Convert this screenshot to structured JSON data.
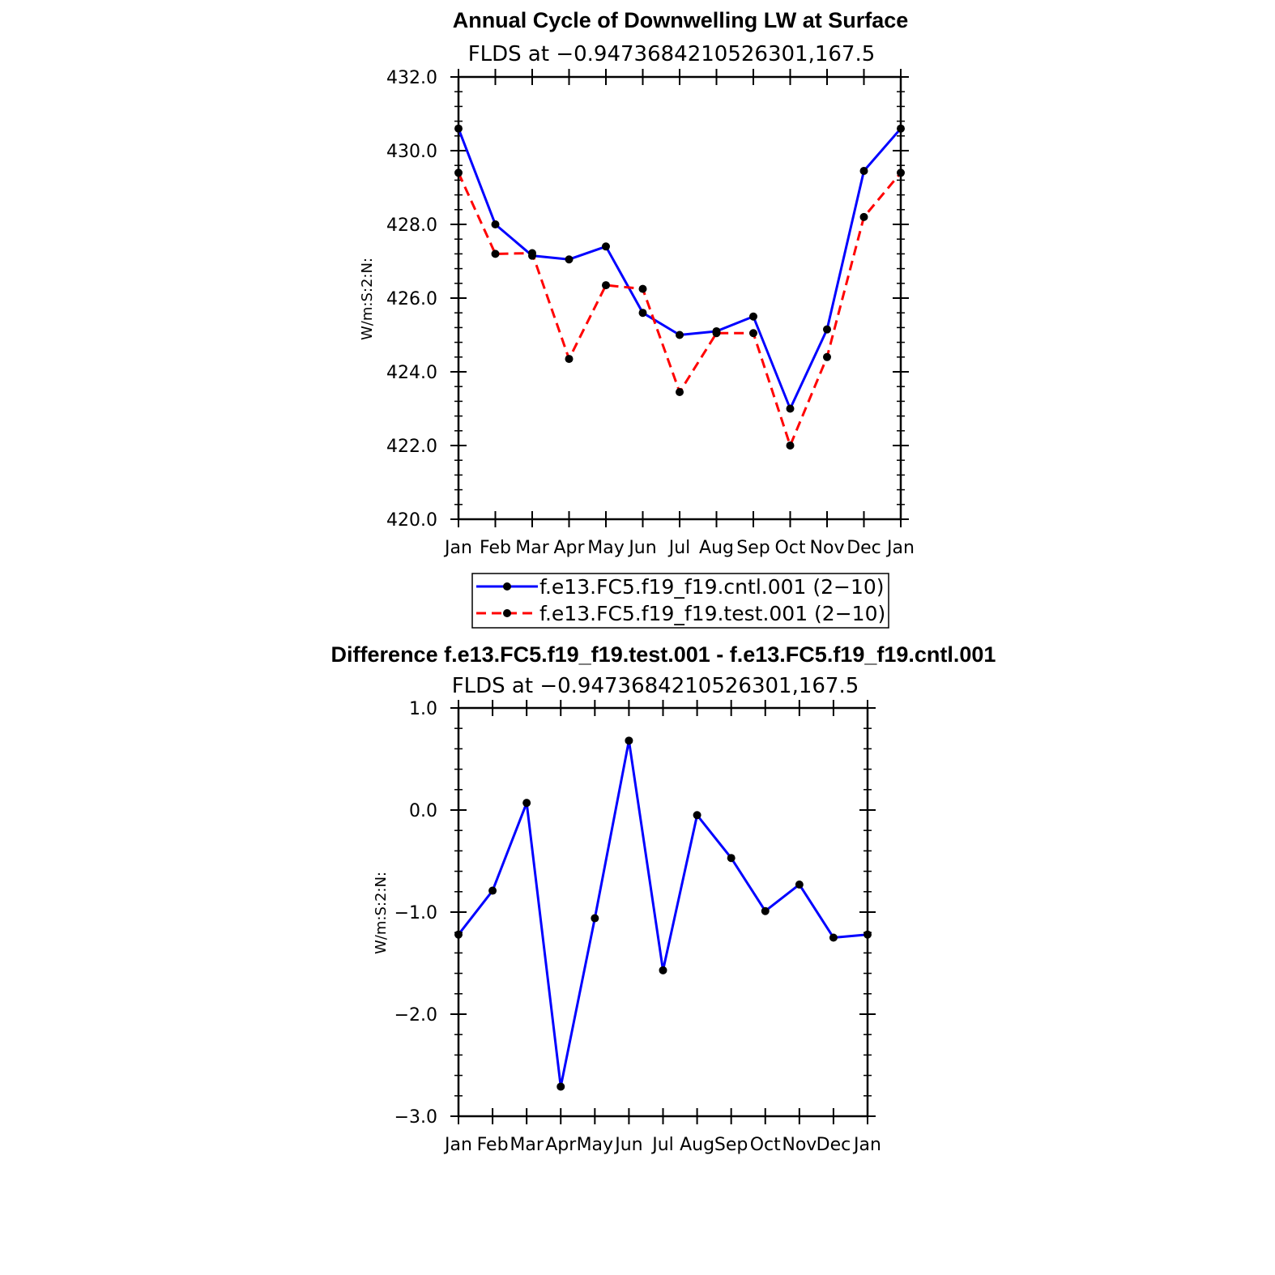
{
  "chart_data": [
    {
      "type": "line",
      "title": "Annual Cycle of Downwelling LW at Surface",
      "subtitle": "FLDS at −0.9473684210526301,167.5",
      "xlabel": "",
      "ylabel": "W/m:S:2:N:",
      "categories": [
        "Jan",
        "Feb",
        "Mar",
        "Apr",
        "May",
        "Jun",
        "Jul",
        "Aug",
        "Sep",
        "Oct",
        "Nov",
        "Dec",
        "Jan"
      ],
      "ylim": [
        420.0,
        432.0
      ],
      "yticks": [
        "420.0",
        "422.0",
        "424.0",
        "426.0",
        "428.0",
        "430.0",
        "432.0"
      ],
      "grid": false,
      "legend_position": "bottom",
      "series": [
        {
          "name": "f.e13.FC5.f19_f19.cntl.001 (2−10)",
          "color": "#0000ff",
          "dash": "solid",
          "values": [
            430.6,
            428.0,
            427.15,
            427.05,
            427.4,
            425.6,
            425.0,
            425.1,
            425.5,
            423.0,
            425.15,
            429.45,
            430.6
          ]
        },
        {
          "name": "f.e13.FC5.f19_f19.test.001 (2−10)",
          "color": "#ff0000",
          "dash": "dashed",
          "values": [
            429.4,
            427.2,
            427.22,
            424.35,
            426.35,
            426.25,
            423.45,
            425.05,
            425.05,
            422.0,
            424.4,
            428.2,
            429.4
          ]
        }
      ]
    },
    {
      "type": "line",
      "title": "Difference f.e13.FC5.f19_f19.test.001 - f.e13.FC5.f19_f19.cntl.001",
      "subtitle": "FLDS at −0.9473684210526301,167.5",
      "xlabel": "",
      "ylabel": "W/m:S:2:N:",
      "categories": [
        "Jan",
        "Feb",
        "Mar",
        "Apr",
        "May",
        "Jun",
        "Jul",
        "Aug",
        "Sep",
        "Oct",
        "Nov",
        "Dec",
        "Jan"
      ],
      "ylim": [
        -3.0,
        1.0
      ],
      "yticks": [
        "−3.0",
        "−2.0",
        "−1.0",
        "0.0",
        "1.0"
      ],
      "grid": false,
      "series": [
        {
          "color": "#0000ff",
          "dash": "solid",
          "values": [
            -1.22,
            -0.79,
            0.07,
            -2.71,
            -1.06,
            0.68,
            -1.57,
            -0.05,
            -0.47,
            -0.99,
            -0.73,
            -1.25,
            -1.22
          ]
        }
      ]
    }
  ]
}
